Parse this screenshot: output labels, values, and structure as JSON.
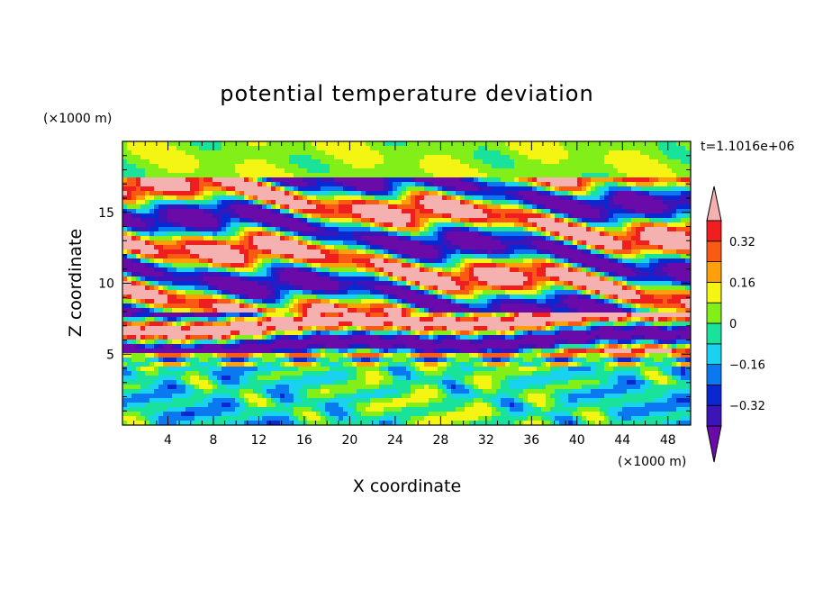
{
  "chart_data": {
    "type": "heatmap",
    "title": "potential temperature deviation",
    "xlabel": "X coordinate",
    "ylabel": "Z coordinate",
    "x_unit": "(×1000 m)",
    "y_unit": "(×1000 m)",
    "time_label": "t=1.1016e+06",
    "xlim": [
      0,
      50
    ],
    "ylim": [
      0,
      20
    ],
    "x_ticks": [
      4,
      8,
      12,
      16,
      20,
      24,
      28,
      32,
      36,
      40,
      44,
      48
    ],
    "y_ticks": [
      5,
      10,
      15
    ],
    "colorbar": {
      "levels": [
        -0.4,
        -0.32,
        -0.24,
        -0.16,
        -0.08,
        0,
        0.08,
        0.16,
        0.24,
        0.32,
        0.4
      ],
      "labeled_ticks": [
        0.32,
        0.16,
        0,
        -0.16,
        -0.32
      ],
      "tick_labels": [
        "0.32",
        "0.16",
        "0",
        "−0.16",
        "−0.32"
      ],
      "colors": [
        "#6a0aa8",
        "#3c14b8",
        "#0a28d2",
        "#0a78f0",
        "#19d2f0",
        "#19e39a",
        "#82f018",
        "#f5f514",
        "#ffa00a",
        "#fa5a14",
        "#f01e1e",
        "#f5b0b0"
      ],
      "extend": "both"
    },
    "field_description": [
      {
        "z_range": [
          0,
          4
        ],
        "pattern": "wavy turbulent mix, mostly 0 to -0.16 with red/blue eddies"
      },
      {
        "z_range": [
          4,
          4.8
        ],
        "pattern": "thin alternating layers of +0.4 and -0.4"
      },
      {
        "z_range": [
          5,
          8
        ],
        "pattern": "large positive (>0.4) and negative (<-0.4) elongated bands"
      },
      {
        "z_range": [
          8,
          17.5
        ],
        "pattern": "tilted bands of strong positive/negative deviation"
      },
      {
        "z_range": [
          17.5,
          20
        ],
        "pattern": "weak deviation, mostly near 0 to +0.08"
      }
    ]
  }
}
